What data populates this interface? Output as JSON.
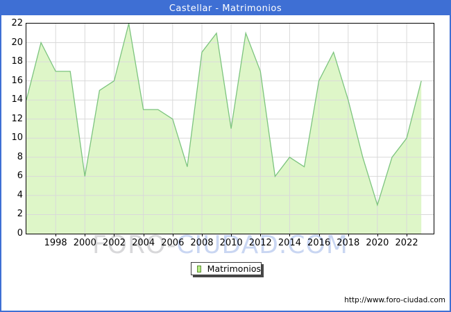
{
  "header": {
    "title": "Castellar - Matrimonios"
  },
  "legend": {
    "label": "Matrimonios"
  },
  "footer": {
    "url": "http://www.foro-ciudad.com"
  },
  "watermark": {
    "gray_text": "FORO-",
    "blue_text": "CIUDAD.COM"
  },
  "colors": {
    "frame_blue": "#3e6fd4",
    "title_text": "#ffffff",
    "area_fill": "#def6c8",
    "area_line": "#7cc47e",
    "gridline": "#d9d9d9",
    "axis_text": "#000000",
    "legend_swatch_fill": "#b6ec86",
    "legend_swatch_border": "#5f8f33",
    "watermark_gray": "#d8d8da",
    "watermark_blue": "#c9d6f2"
  },
  "chart_data": {
    "type": "area",
    "title": "Castellar - Matrimonios",
    "series_name": "Matrimonios",
    "x": [
      1996,
      1997,
      1998,
      1999,
      2000,
      2001,
      2002,
      2003,
      2004,
      2005,
      2006,
      2007,
      2008,
      2009,
      2010,
      2011,
      2012,
      2013,
      2014,
      2015,
      2016,
      2017,
      2018,
      2019,
      2020,
      2021,
      2022,
      2023
    ],
    "values": [
      14,
      20,
      17,
      17,
      6,
      15,
      16,
      22,
      13,
      13,
      12,
      7,
      19,
      21,
      11,
      21,
      17,
      6,
      8,
      7,
      16,
      19,
      14,
      8,
      3,
      8,
      10,
      16
    ],
    "ylim": [
      0,
      22
    ],
    "ytick_step": 2,
    "xtick_years": [
      1998,
      2000,
      2002,
      2004,
      2006,
      2008,
      2010,
      2012,
      2014,
      2016,
      2018,
      2020,
      2022
    ],
    "grid": true,
    "legend_position": "bottom-center",
    "xlabel": "",
    "ylabel": ""
  }
}
